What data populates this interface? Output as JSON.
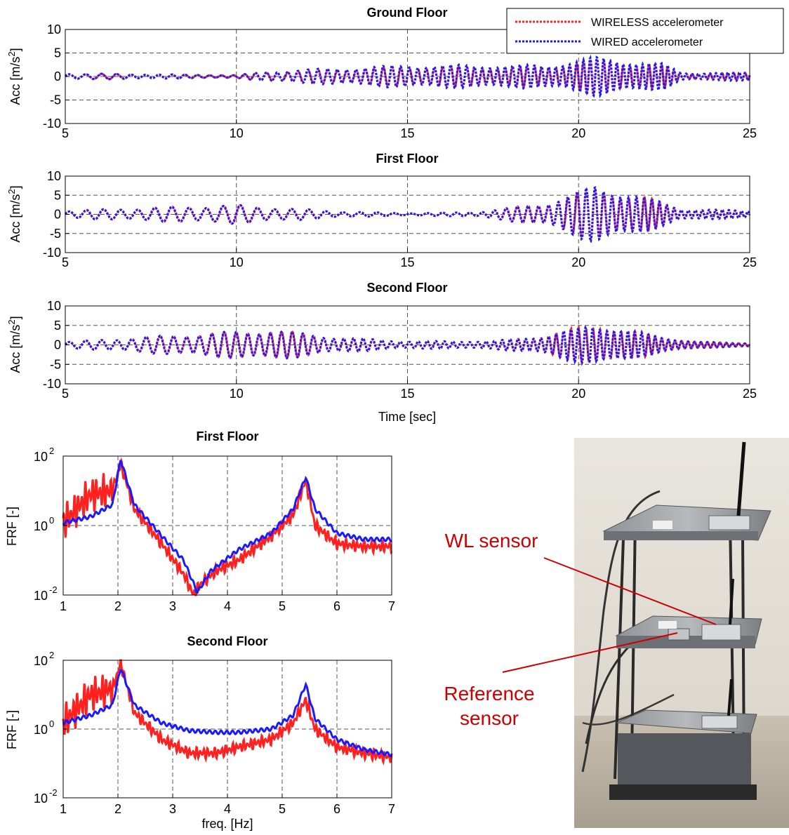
{
  "legend": {
    "wireless_label": "WIRELESS accelerometer",
    "wired_label": "WIRED accelerometer"
  },
  "colors": {
    "wireless": "#ff2020",
    "wired": "#1a1aff",
    "annotation": "#cc0000"
  },
  "x_axis_label_time": "Time [sec]",
  "x_axis_label_freq": "freq. [Hz]",
  "time_panels": [
    {
      "title": "Ground Floor",
      "ylabel_base": "Acc [m/s",
      "ylabel_sup": "2",
      "ylabel_end": "]"
    },
    {
      "title": "First Floor",
      "ylabel_base": "Acc [m/s",
      "ylabel_sup": "2",
      "ylabel_end": "]"
    },
    {
      "title": "Second Floor",
      "ylabel_base": "Acc [m/s",
      "ylabel_sup": "2",
      "ylabel_end": "]"
    }
  ],
  "frf_panels": [
    {
      "title": "First Floor",
      "ylabel": "FRF [-]"
    },
    {
      "title": "Second Floor",
      "ylabel": "FRF [-]"
    }
  ],
  "photo": {
    "wl_sensor_label": "WL sensor",
    "reference_label_line1": "Reference",
    "reference_label_line2": "sensor"
  },
  "chart_data": [
    {
      "type": "line",
      "title": "Ground Floor",
      "xlim": [
        5,
        25
      ],
      "ylim": [
        -10,
        10
      ],
      "xticks": [
        5,
        10,
        15,
        20,
        25
      ],
      "yticks": [
        -10,
        -5,
        0,
        5,
        10
      ],
      "grid": true,
      "legend": "top-right",
      "series": [
        {
          "name": "WIRELESS accelerometer",
          "envelope": [
            [
              5,
              0.6
            ],
            [
              10,
              0.3
            ],
            [
              11,
              1
            ],
            [
              15,
              2.2
            ],
            [
              19,
              2.2
            ],
            [
              20.5,
              3.8
            ],
            [
              22.5,
              2.5
            ],
            [
              23,
              0.7
            ],
            [
              25,
              0.8
            ]
          ]
        },
        {
          "name": "WIRED accelerometer",
          "envelope": [
            [
              5,
              0.7
            ],
            [
              10,
              0.3
            ],
            [
              11,
              1.2
            ],
            [
              15,
              2.5
            ],
            [
              19,
              2.5
            ],
            [
              20.5,
              4.2
            ],
            [
              22.5,
              2.8
            ],
            [
              23,
              0.8
            ],
            [
              25,
              0.9
            ]
          ]
        }
      ]
    },
    {
      "type": "line",
      "title": "First Floor",
      "xlim": [
        5,
        25
      ],
      "ylim": [
        -10,
        10
      ],
      "xticks": [
        5,
        10,
        15,
        20,
        25
      ],
      "yticks": [
        -10,
        -5,
        0,
        5,
        10
      ],
      "grid": true,
      "series": [
        {
          "name": "WIRELESS accelerometer",
          "envelope": [
            [
              5,
              1
            ],
            [
              8,
              2
            ],
            [
              10,
              2.5
            ],
            [
              13,
              0.8
            ],
            [
              15,
              0.3
            ],
            [
              17,
              0.6
            ],
            [
              19,
              3
            ],
            [
              20.5,
              7.2
            ],
            [
              22,
              4.5
            ],
            [
              23,
              1.5
            ],
            [
              25,
              1
            ]
          ]
        },
        {
          "name": "WIRED accelerometer",
          "envelope": [
            [
              5,
              1
            ],
            [
              8,
              2
            ],
            [
              10,
              2.5
            ],
            [
              13,
              0.8
            ],
            [
              15,
              0.3
            ],
            [
              17,
              0.6
            ],
            [
              19,
              3
            ],
            [
              20.5,
              7.8
            ],
            [
              22,
              4.5
            ],
            [
              23,
              1.5
            ],
            [
              25,
              1
            ]
          ]
        }
      ]
    },
    {
      "type": "line",
      "title": "Second Floor",
      "xlim": [
        5,
        25
      ],
      "ylim": [
        -10,
        10
      ],
      "xlabel": "Time [sec]",
      "xticks": [
        5,
        10,
        15,
        20,
        25
      ],
      "yticks": [
        -10,
        -5,
        0,
        5,
        10
      ],
      "grid": true,
      "series": [
        {
          "name": "WIRELESS accelerometer",
          "envelope": [
            [
              5,
              0.8
            ],
            [
              8,
              2.5
            ],
            [
              11,
              4
            ],
            [
              13,
              2
            ],
            [
              15,
              1
            ],
            [
              17.5,
              1
            ],
            [
              19,
              2.5
            ],
            [
              20.5,
              5.8
            ],
            [
              22.5,
              2
            ],
            [
              23.5,
              0.8
            ],
            [
              25,
              0.5
            ]
          ]
        },
        {
          "name": "WIRED accelerometer",
          "envelope": [
            [
              5,
              0.8
            ],
            [
              8,
              2.5
            ],
            [
              11,
              4
            ],
            [
              13,
              2
            ],
            [
              15,
              1
            ],
            [
              17.5,
              1
            ],
            [
              19,
              2.5
            ],
            [
              20.5,
              5.5
            ],
            [
              22.5,
              2
            ],
            [
              23.5,
              0.8
            ],
            [
              25,
              0.5
            ]
          ]
        }
      ]
    },
    {
      "type": "line",
      "title": "First Floor",
      "xlim": [
        1,
        7
      ],
      "ylim": [
        0.01,
        100
      ],
      "yscale": "log",
      "xticks": [
        1,
        2,
        3,
        4,
        5,
        6,
        7
      ],
      "yticks": [
        "10^-2",
        "10^0",
        "10^2"
      ],
      "ylabel": "FRF [-]",
      "grid": true,
      "series": [
        {
          "name": "WIRELESS accelerometer",
          "x": [
            1,
            1.5,
            1.9,
            2.05,
            2.3,
            2.8,
            3.2,
            3.38,
            3.5,
            3.8,
            4.2,
            4.8,
            5.2,
            5.43,
            5.6,
            6,
            6.5,
            7
          ],
          "y": [
            1.2,
            8,
            10,
            60,
            3,
            0.3,
            0.04,
            0.01,
            0.02,
            0.05,
            0.1,
            0.5,
            2,
            20,
            1,
            0.3,
            0.25,
            0.25
          ]
        },
        {
          "name": "WIRED accelerometer",
          "x": [
            1,
            1.5,
            1.9,
            2.05,
            2.3,
            2.8,
            3.2,
            3.45,
            3.7,
            4.2,
            4.8,
            5.2,
            5.43,
            5.6,
            6,
            6.5,
            7
          ],
          "y": [
            1.2,
            1.8,
            4,
            80,
            4,
            0.5,
            0.1,
            0.012,
            0.05,
            0.2,
            0.6,
            3,
            25,
            3,
            0.6,
            0.4,
            0.4
          ]
        }
      ]
    },
    {
      "type": "line",
      "title": "Second Floor",
      "xlim": [
        1,
        7
      ],
      "ylim": [
        0.01,
        100
      ],
      "yscale": "log",
      "xlabel": "freq. [Hz]",
      "xticks": [
        1,
        2,
        3,
        4,
        5,
        6,
        7
      ],
      "yticks": [
        "10^-2",
        "10^0",
        "10^2"
      ],
      "ylabel": "FRF [-]",
      "grid": true,
      "series": [
        {
          "name": "WIRELESS accelerometer",
          "x": [
            1,
            1.5,
            1.9,
            2.05,
            2.3,
            2.8,
            3.3,
            3.8,
            4.2,
            4.8,
            5.2,
            5.43,
            5.6,
            6,
            6.5,
            7
          ],
          "y": [
            1.5,
            10,
            15,
            80,
            3,
            0.5,
            0.2,
            0.2,
            0.3,
            0.5,
            1.5,
            7,
            1,
            0.3,
            0.2,
            0.15
          ]
        },
        {
          "name": "WIRED accelerometer",
          "x": [
            1,
            1.5,
            1.9,
            2.05,
            2.3,
            2.8,
            3.3,
            3.8,
            4.2,
            4.8,
            5.2,
            5.43,
            5.6,
            6,
            6.5,
            7
          ],
          "y": [
            1.5,
            2.5,
            5,
            60,
            5,
            1.5,
            0.9,
            0.8,
            0.8,
            1,
            2.5,
            20,
            2,
            0.5,
            0.25,
            0.18
          ]
        }
      ]
    }
  ]
}
